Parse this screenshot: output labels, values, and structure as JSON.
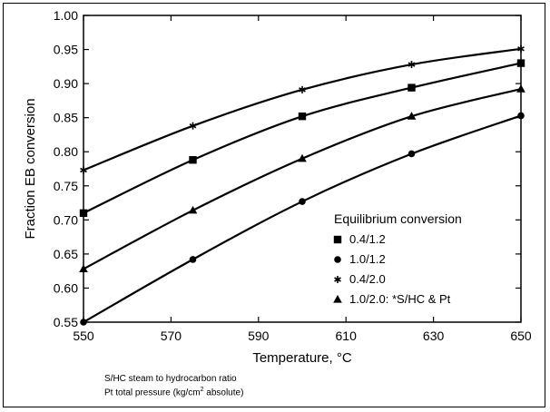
{
  "chart_data": {
    "type": "line",
    "xlabel": "Temperature, °C",
    "ylabel": "Fraction EB conversion",
    "xlim": [
      550,
      650
    ],
    "ylim": [
      0.55,
      1.0
    ],
    "x_ticks": [
      "550",
      "570",
      "590",
      "610",
      "630",
      "650"
    ],
    "y_ticks": [
      "0.55",
      "0.60",
      "0.65",
      "0.70",
      "0.75",
      "0.80",
      "0.85",
      "0.90",
      "0.95",
      "1.00"
    ],
    "legend": {
      "title": "Equilibrium conversion",
      "placement": "lower-right"
    },
    "series": [
      {
        "name": "0.4/1.2",
        "marker": "square",
        "x": [
          550,
          575,
          600,
          625,
          650
        ],
        "y": [
          0.71,
          0.788,
          0.852,
          0.894,
          0.93
        ]
      },
      {
        "name": "1.0/1.2",
        "marker": "circle",
        "x": [
          550,
          575,
          600,
          625,
          650
        ],
        "y": [
          0.55,
          0.642,
          0.727,
          0.797,
          0.853
        ]
      },
      {
        "name": "0.4/2.0",
        "marker": "star",
        "x": [
          550,
          575,
          600,
          625,
          650
        ],
        "y": [
          0.773,
          0.838,
          0.891,
          0.928,
          0.951
        ]
      },
      {
        "name": "1.0/2.0: *S/HC & Pt",
        "marker": "triangle",
        "x": [
          550,
          575,
          600,
          625,
          650
        ],
        "y": [
          0.628,
          0.714,
          0.79,
          0.852,
          0.892
        ]
      }
    ],
    "grid": false
  },
  "footnotes": {
    "line1": "S/HC  steam to hydrocarbon ratio",
    "line2_pre": "Pt  total pressure (kg/cm",
    "line2_sup": "2",
    "line2_post": " absolute)"
  }
}
